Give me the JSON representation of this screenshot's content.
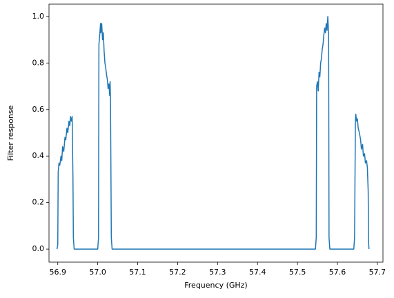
{
  "chart_data": {
    "type": "line",
    "x_label": "Frequency (GHz)",
    "y_label": "Filter response",
    "color": "#1f77b4",
    "x": [
      56.898,
      56.9,
      56.901,
      56.903,
      56.905,
      56.908,
      56.91,
      56.912,
      56.915,
      56.918,
      56.92,
      56.923,
      56.925,
      56.928,
      56.93,
      56.932,
      56.934,
      56.936,
      56.938,
      56.939,
      56.941,
      57.0,
      57.002,
      57.003,
      57.005,
      57.007,
      57.008,
      57.01,
      57.012,
      57.014,
      57.016,
      57.018,
      57.02,
      57.022,
      57.024,
      57.026,
      57.028,
      57.03,
      57.031,
      57.032,
      57.034,
      57.036,
      57.545,
      57.547,
      57.548,
      57.55,
      57.552,
      57.554,
      57.556,
      57.558,
      57.56,
      57.562,
      57.564,
      57.566,
      57.568,
      57.57,
      57.572,
      57.574,
      57.576,
      57.578,
      57.579,
      57.581,
      57.641,
      57.643,
      57.645,
      57.646,
      57.648,
      57.65,
      57.652,
      57.655,
      57.658,
      57.66,
      57.663,
      57.665,
      57.668,
      57.67,
      57.673,
      57.675,
      57.677,
      57.678,
      57.679
    ],
    "values": [
      0,
      0.02,
      0.33,
      0.37,
      0.36,
      0.4,
      0.38,
      0.44,
      0.42,
      0.48,
      0.47,
      0.52,
      0.5,
      0.55,
      0.53,
      0.57,
      0.55,
      0.57,
      0.3,
      0.05,
      0,
      0,
      0.05,
      0.88,
      0.92,
      0.97,
      0.93,
      0.97,
      0.9,
      0.93,
      0.85,
      0.8,
      0.78,
      0.75,
      0.73,
      0.69,
      0.71,
      0.66,
      0.72,
      0.64,
      0.05,
      0,
      0,
      0.05,
      0.7,
      0.72,
      0.68,
      0.76,
      0.74,
      0.8,
      0.82,
      0.86,
      0.88,
      0.92,
      0.95,
      0.93,
      0.97,
      0.94,
      1.0,
      0.92,
      0.05,
      0,
      0,
      0.05,
      0.55,
      0.58,
      0.55,
      0.56,
      0.52,
      0.5,
      0.47,
      0.43,
      0.45,
      0.4,
      0.41,
      0.37,
      0.38,
      0.35,
      0.25,
      0.03,
      0
    ],
    "xlim": [
      56.878,
      57.714
    ],
    "ylim": [
      -0.056,
      1.053
    ],
    "xticks": [
      56.9,
      {
        "value": 57,
        "label": "57.0"
      },
      57.1,
      57.2,
      57.3,
      57.4,
      57.5,
      57.6,
      57.7
    ],
    "yticks": [
      {
        "value": 0,
        "label": "0.0"
      },
      0.2,
      0.4,
      0.6,
      0.8,
      {
        "value": 1,
        "label": "1.0"
      }
    ],
    "grid": false
  }
}
